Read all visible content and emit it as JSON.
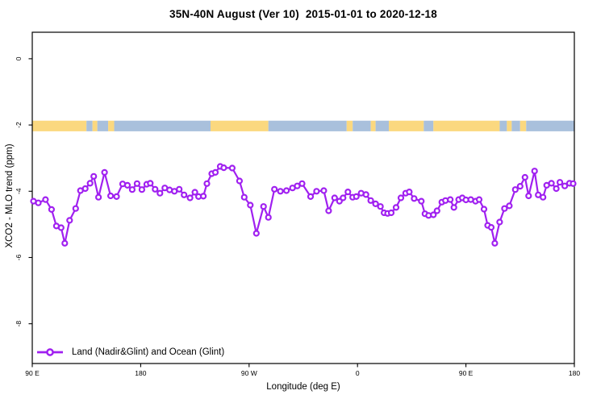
{
  "chart_data": {
    "type": "line",
    "title": "35N-40N August (Ver 10)  2015-01-01 to 2020-12-18",
    "xlabel": "Longitude (deg E)",
    "ylabel": "XCO2 - MLO trend (ppm)",
    "xlim": [
      90,
      540
    ],
    "ylim": [
      -9.2,
      0.8
    ],
    "grid": false,
    "legend_position": "bottom-left",
    "x_ticks": [
      {
        "value": 90,
        "label": "90 E"
      },
      {
        "value": 180,
        "label": "180"
      },
      {
        "value": 270,
        "label": "90 W"
      },
      {
        "value": 360,
        "label": "0"
      },
      {
        "value": 450,
        "label": "90 E"
      },
      {
        "value": 540,
        "label": "180"
      }
    ],
    "y_ticks": [
      {
        "value": 0,
        "label": "0"
      },
      {
        "value": -2,
        "label": "-2"
      },
      {
        "value": -4,
        "label": "-4"
      },
      {
        "value": -6,
        "label": "-6"
      },
      {
        "value": -8,
        "label": "-8"
      }
    ],
    "map_strip": {
      "description": "land/ocean surface strip along 35N-40N, drawn centered at y = -2",
      "y_top": -1.87,
      "y_bottom": -2.19,
      "land_color": "#FBD87F",
      "ocean_color": "#A9C0DC",
      "segments": [
        {
          "from": 90,
          "to": 135,
          "surface": "land"
        },
        {
          "from": 135,
          "to": 140,
          "surface": "ocean"
        },
        {
          "from": 140,
          "to": 144,
          "surface": "land"
        },
        {
          "from": 144,
          "to": 153,
          "surface": "ocean"
        },
        {
          "from": 153,
          "to": 158,
          "surface": "land"
        },
        {
          "from": 158,
          "to": 238,
          "surface": "ocean"
        },
        {
          "from": 238,
          "to": 286,
          "surface": "land"
        },
        {
          "from": 286,
          "to": 351,
          "surface": "ocean"
        },
        {
          "from": 351,
          "to": 356,
          "surface": "land"
        },
        {
          "from": 356,
          "to": 371,
          "surface": "ocean"
        },
        {
          "from": 371,
          "to": 375,
          "surface": "land"
        },
        {
          "from": 375,
          "to": 386,
          "surface": "ocean"
        },
        {
          "from": 386,
          "to": 415,
          "surface": "land"
        },
        {
          "from": 415,
          "to": 423,
          "surface": "ocean"
        },
        {
          "from": 423,
          "to": 478,
          "surface": "land"
        },
        {
          "from": 478,
          "to": 484,
          "surface": "ocean"
        },
        {
          "from": 484,
          "to": 488,
          "surface": "land"
        },
        {
          "from": 488,
          "to": 495,
          "surface": "ocean"
        },
        {
          "from": 495,
          "to": 500,
          "surface": "land"
        },
        {
          "from": 500,
          "to": 540,
          "surface": "ocean"
        }
      ]
    },
    "series": [
      {
        "name": "Land (Nadir&Glint) and Ocean (Glint)",
        "color": "#A020F0",
        "marker": "open-circle",
        "points": [
          [
            91,
            -4.3
          ],
          [
            95,
            -4.35
          ],
          [
            101,
            -4.25
          ],
          [
            106,
            -4.55
          ],
          [
            110,
            -5.05
          ],
          [
            114,
            -5.1
          ],
          [
            117,
            -5.57
          ],
          [
            121,
            -4.88
          ],
          [
            126,
            -4.52
          ],
          [
            130,
            -3.98
          ],
          [
            134,
            -3.92
          ],
          [
            138,
            -3.76
          ],
          [
            141,
            -3.55
          ],
          [
            145,
            -4.18
          ],
          [
            150,
            -3.43
          ],
          [
            155,
            -4.14
          ],
          [
            160,
            -4.16
          ],
          [
            165,
            -3.78
          ],
          [
            169,
            -3.82
          ],
          [
            173,
            -3.95
          ],
          [
            177,
            -3.77
          ],
          [
            181,
            -3.95
          ],
          [
            185,
            -3.79
          ],
          [
            188,
            -3.76
          ],
          [
            192,
            -3.94
          ],
          [
            196,
            -4.06
          ],
          [
            200,
            -3.9
          ],
          [
            204,
            -3.96
          ],
          [
            208,
            -4.0
          ],
          [
            212,
            -3.94
          ],
          [
            216,
            -4.11
          ],
          [
            221,
            -4.2
          ],
          [
            225,
            -4.03
          ],
          [
            228,
            -4.16
          ],
          [
            232,
            -4.15
          ],
          [
            235,
            -3.77
          ],
          [
            239,
            -3.47
          ],
          [
            242,
            -3.43
          ],
          [
            246,
            -3.25
          ],
          [
            249,
            -3.29
          ],
          [
            256,
            -3.3
          ],
          [
            262,
            -3.69
          ],
          [
            266,
            -4.18
          ],
          [
            271,
            -4.42
          ],
          [
            276,
            -5.27
          ],
          [
            282,
            -4.46
          ],
          [
            286,
            -4.79
          ],
          [
            291,
            -3.94
          ],
          [
            296,
            -4.0
          ],
          [
            301,
            -3.98
          ],
          [
            306,
            -3.9
          ],
          [
            310,
            -3.84
          ],
          [
            314,
            -3.77
          ],
          [
            321,
            -4.16
          ],
          [
            326,
            -4.0
          ],
          [
            332,
            -3.98
          ],
          [
            336,
            -4.59
          ],
          [
            341,
            -4.2
          ],
          [
            345,
            -4.3
          ],
          [
            348,
            -4.2
          ],
          [
            352,
            -4.02
          ],
          [
            356,
            -4.18
          ],
          [
            359,
            -4.16
          ],
          [
            363,
            -4.06
          ],
          [
            367,
            -4.1
          ],
          [
            371,
            -4.28
          ],
          [
            375,
            -4.38
          ],
          [
            379,
            -4.46
          ],
          [
            382,
            -4.65
          ],
          [
            385,
            -4.67
          ],
          [
            388,
            -4.65
          ],
          [
            392,
            -4.49
          ],
          [
            396,
            -4.2
          ],
          [
            400,
            -4.06
          ],
          [
            403,
            -4.02
          ],
          [
            407,
            -4.22
          ],
          [
            413,
            -4.3
          ],
          [
            416,
            -4.68
          ],
          [
            419,
            -4.73
          ],
          [
            423,
            -4.71
          ],
          [
            426,
            -4.59
          ],
          [
            430,
            -4.33
          ],
          [
            433,
            -4.28
          ],
          [
            437,
            -4.25
          ],
          [
            440,
            -4.49
          ],
          [
            444,
            -4.25
          ],
          [
            447,
            -4.2
          ],
          [
            450,
            -4.26
          ],
          [
            454,
            -4.25
          ],
          [
            458,
            -4.3
          ],
          [
            461,
            -4.25
          ],
          [
            465,
            -4.54
          ],
          [
            468,
            -5.03
          ],
          [
            471,
            -5.09
          ],
          [
            474,
            -5.57
          ],
          [
            478,
            -4.93
          ],
          [
            482,
            -4.52
          ],
          [
            486,
            -4.44
          ],
          [
            491,
            -3.95
          ],
          [
            495,
            -3.85
          ],
          [
            499,
            -3.58
          ],
          [
            502,
            -4.14
          ],
          [
            507,
            -3.39
          ],
          [
            510,
            -4.11
          ],
          [
            514,
            -4.18
          ],
          [
            517,
            -3.82
          ],
          [
            521,
            -3.76
          ],
          [
            525,
            -3.92
          ],
          [
            528,
            -3.73
          ],
          [
            532,
            -3.84
          ],
          [
            536,
            -3.76
          ],
          [
            539,
            -3.77
          ]
        ]
      }
    ]
  }
}
